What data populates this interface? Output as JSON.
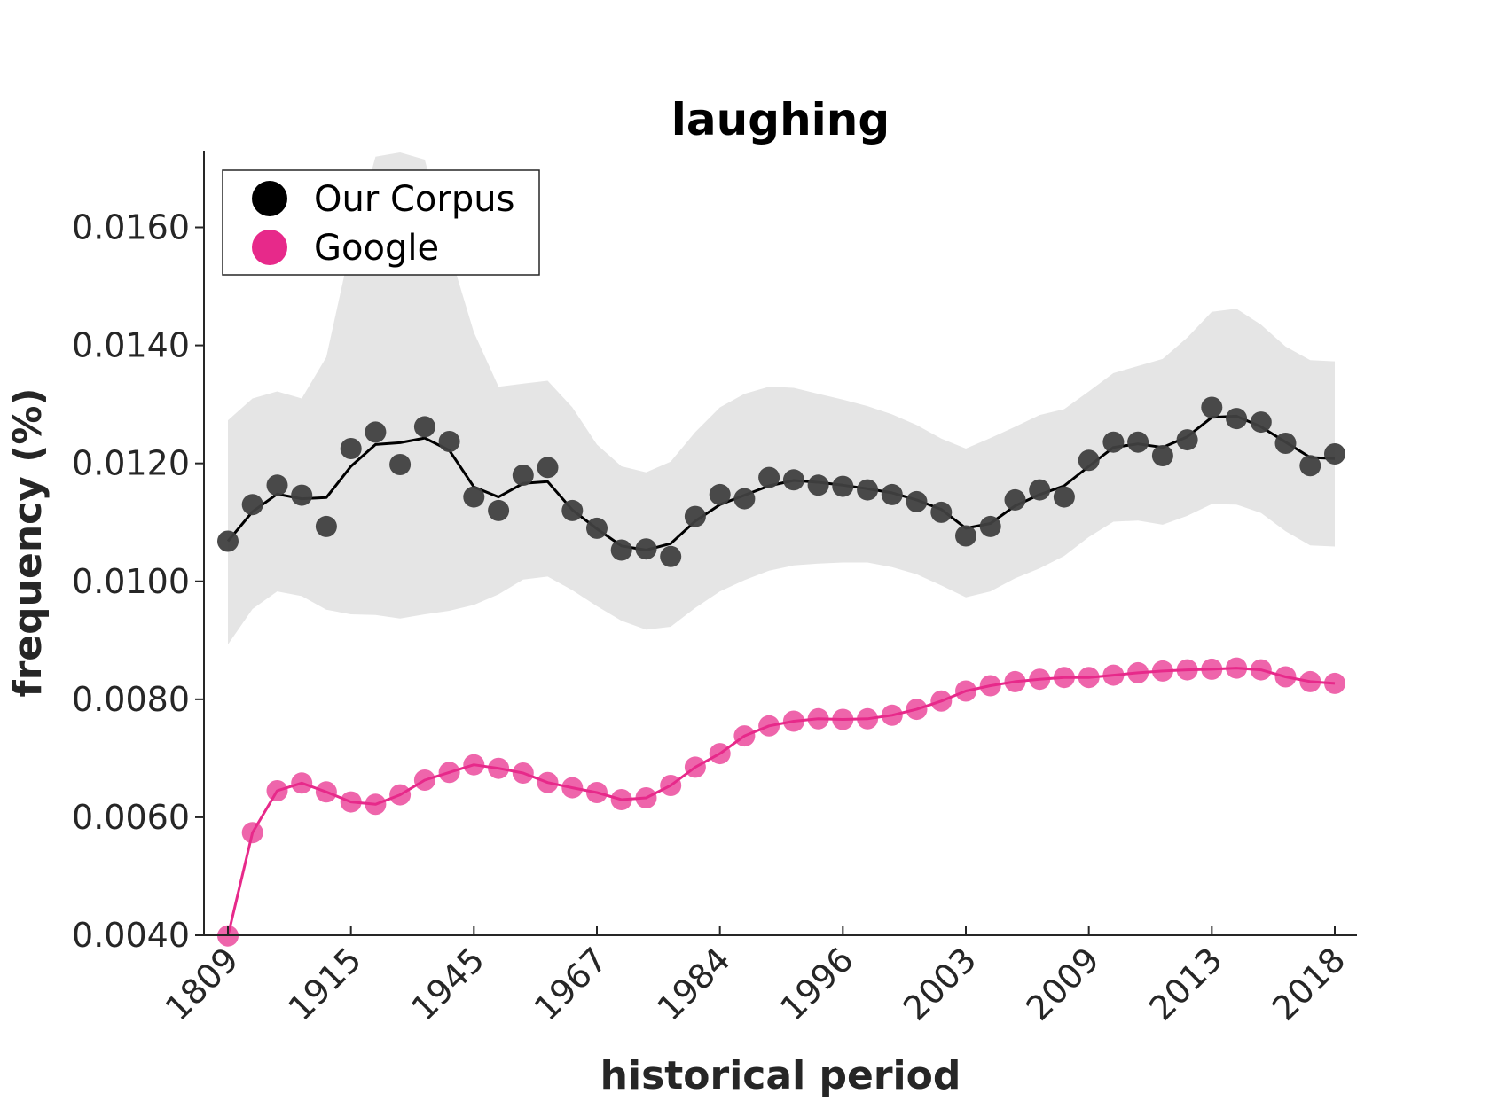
{
  "chart_data": {
    "type": "line",
    "title": "laughing",
    "xlabel": "historical period",
    "ylabel": "frequency (%)",
    "ylim": [
      0.004,
      0.0173
    ],
    "y_ticks": [
      "0.0040",
      "0.0060",
      "0.0080",
      "0.0100",
      "0.0120",
      "0.0140",
      "0.0160"
    ],
    "x_tick_labels": [
      "1809",
      "1915",
      "1945",
      "1967",
      "1984",
      "1996",
      "2003",
      "2009",
      "2013",
      "2018"
    ],
    "x_tick_index": [
      0,
      5,
      10,
      15,
      20,
      25,
      30,
      35,
      40,
      45
    ],
    "legend_position": "top-left",
    "colors": {
      "corpus": "#000000",
      "corpus_points": "#404040",
      "google": "#e7298a",
      "band": "#e5e5e5",
      "axis": "#262626"
    },
    "series": [
      {
        "name": "Our Corpus",
        "points": [
          0.01068,
          0.0113,
          0.01163,
          0.01146,
          0.01093,
          0.01225,
          0.01253,
          0.01198,
          0.01262,
          0.01237,
          0.01143,
          0.0112,
          0.0118,
          0.01193,
          0.0112,
          0.0109,
          0.01053,
          0.01055,
          0.01042,
          0.0111,
          0.01147,
          0.0114,
          0.01176,
          0.01172,
          0.01163,
          0.01161,
          0.01155,
          0.01147,
          0.01135,
          0.01117,
          0.01077,
          0.01093,
          0.01138,
          0.01155,
          0.01143,
          0.01205,
          0.01236,
          0.01236,
          0.01213,
          0.0124,
          0.01295,
          0.01276,
          0.0127,
          0.01234,
          0.01196,
          0.01216
        ],
        "trend": [
          0.01068,
          0.01118,
          0.01148,
          0.0114,
          0.01142,
          0.01195,
          0.01232,
          0.01235,
          0.01243,
          0.01222,
          0.0116,
          0.01143,
          0.01166,
          0.01169,
          0.01121,
          0.01089,
          0.0106,
          0.01053,
          0.01064,
          0.01102,
          0.0113,
          0.01146,
          0.01162,
          0.01171,
          0.01168,
          0.01163,
          0.01157,
          0.0115,
          0.01138,
          0.01122,
          0.0109,
          0.01098,
          0.01128,
          0.01147,
          0.01162,
          0.01195,
          0.01227,
          0.01233,
          0.01227,
          0.01245,
          0.01278,
          0.0128,
          0.01262,
          0.01236,
          0.0121,
          0.01208
        ],
        "band_upper": [
          0.01273,
          0.0131,
          0.01322,
          0.0131,
          0.0138,
          0.0157,
          0.0172,
          0.01727,
          0.01715,
          0.0156,
          0.01422,
          0.0133,
          0.01335,
          0.0134,
          0.01295,
          0.01232,
          0.01195,
          0.01185,
          0.01203,
          0.01253,
          0.01295,
          0.01318,
          0.0133,
          0.01328,
          0.01318,
          0.01308,
          0.01297,
          0.01283,
          0.01265,
          0.01242,
          0.01225,
          0.01243,
          0.01262,
          0.01282,
          0.01292,
          0.01322,
          0.01353,
          0.01365,
          0.01377,
          0.01413,
          0.01457,
          0.01462,
          0.01435,
          0.01398,
          0.01375,
          0.01373
        ],
        "band_lower": [
          0.00893,
          0.00953,
          0.00983,
          0.00975,
          0.00952,
          0.00944,
          0.00943,
          0.00937,
          0.00944,
          0.0095,
          0.0096,
          0.00978,
          0.01003,
          0.01008,
          0.00985,
          0.00958,
          0.00933,
          0.00918,
          0.00923,
          0.00955,
          0.00983,
          0.01002,
          0.01018,
          0.01027,
          0.0103,
          0.01032,
          0.01032,
          0.01024,
          0.01012,
          0.00993,
          0.00973,
          0.00983,
          0.01005,
          0.01022,
          0.01043,
          0.01075,
          0.01101,
          0.01103,
          0.01096,
          0.01111,
          0.01131,
          0.0113,
          0.01116,
          0.01085,
          0.01061,
          0.01059
        ]
      },
      {
        "name": "Google",
        "points": [
          0.00399,
          0.00574,
          0.00645,
          0.00658,
          0.00643,
          0.00626,
          0.00622,
          0.00638,
          0.00663,
          0.00676,
          0.00689,
          0.00683,
          0.00675,
          0.00659,
          0.0065,
          0.00642,
          0.0063,
          0.00633,
          0.00654,
          0.00685,
          0.00708,
          0.00738,
          0.00755,
          0.00763,
          0.00767,
          0.00766,
          0.00767,
          0.00773,
          0.00783,
          0.00797,
          0.00814,
          0.00823,
          0.0083,
          0.00834,
          0.00837,
          0.00837,
          0.00841,
          0.00845,
          0.00848,
          0.0085,
          0.00851,
          0.00853,
          0.0085,
          0.00838,
          0.0083,
          0.00827
        ]
      }
    ]
  }
}
